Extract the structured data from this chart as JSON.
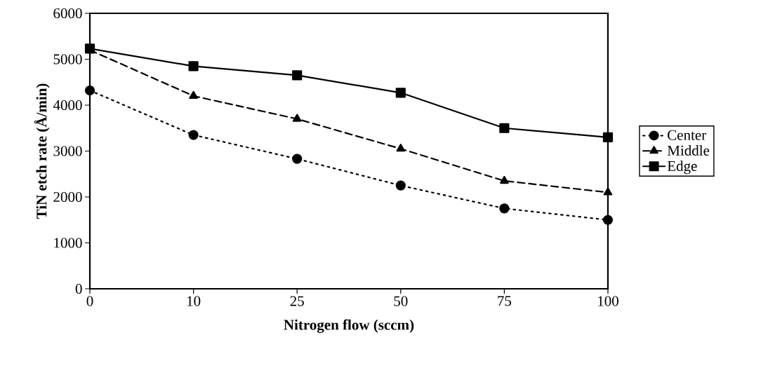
{
  "chart_data": {
    "type": "line",
    "xlabel": "Nitrogen flow (sccm)",
    "ylabel": "TiN etch rate (Å/min)",
    "categories": [
      "0",
      "10",
      "25",
      "50",
      "75",
      "100"
    ],
    "series": [
      {
        "name": "Center",
        "color": "#000000",
        "marker": "circle",
        "line_style": "dotted",
        "values": [
          4320,
          3350,
          2830,
          2250,
          1750,
          1500
        ]
      },
      {
        "name": "Middle",
        "color": "#000000",
        "marker": "triangle",
        "line_style": "dashed",
        "values": [
          5200,
          4200,
          3700,
          3050,
          2350,
          2100
        ]
      },
      {
        "name": "Edge",
        "color": "#000000",
        "marker": "square",
        "line_style": "solid",
        "values": [
          5230,
          4850,
          4650,
          4270,
          3500,
          3300
        ]
      }
    ],
    "ylim": [
      0,
      6000
    ],
    "yticks": [
      0,
      1000,
      2000,
      3000,
      4000,
      5000,
      6000
    ],
    "grid": false,
    "legend": "right"
  }
}
